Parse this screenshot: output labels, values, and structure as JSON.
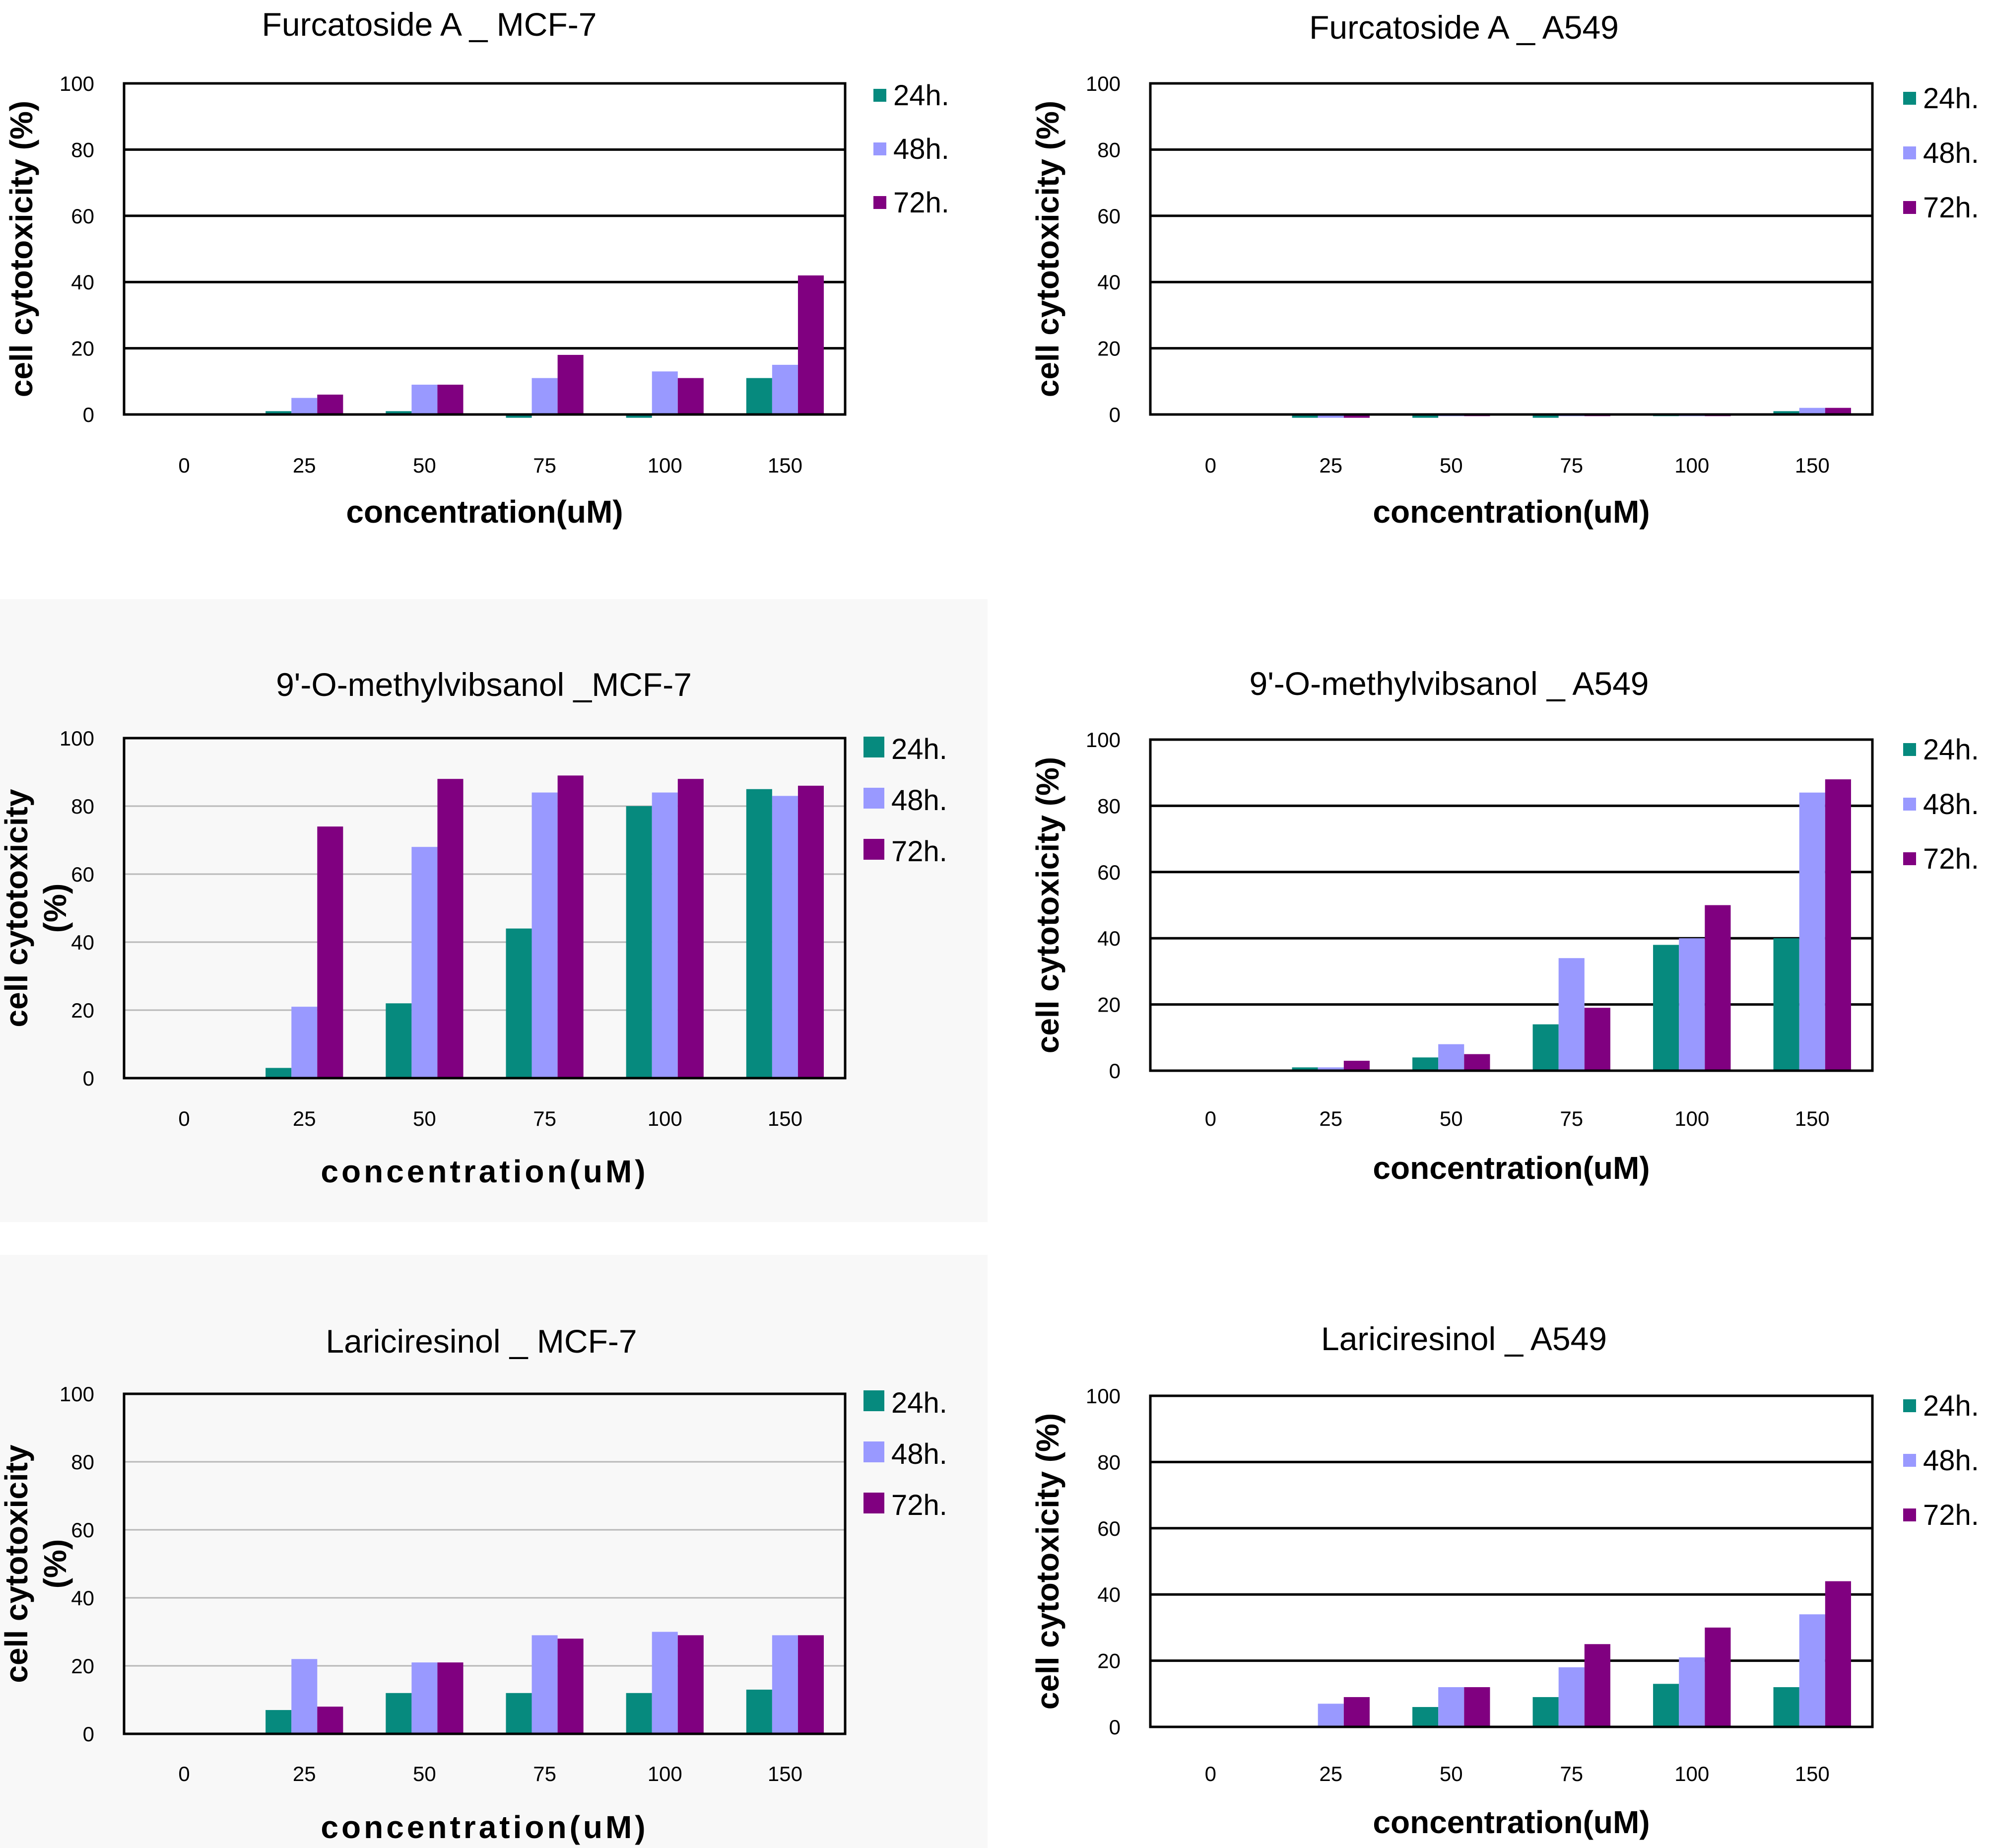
{
  "colors": {
    "24h": "#068a7e",
    "48h": "#9999ff",
    "72h": "#800080"
  },
  "chart_data": [
    {
      "type": "bar",
      "title": "Furcatoside A _ MCF-7",
      "xlabel": "concentration(uM)",
      "ylabel": "cell cytotoxicity (%)",
      "categories": [
        "0",
        "25",
        "50",
        "75",
        "100",
        "150"
      ],
      "ylim": [
        0,
        100
      ],
      "yticks": [
        0,
        20,
        40,
        60,
        80,
        100
      ],
      "series": [
        {
          "name": "24h.",
          "values": [
            0,
            1,
            1,
            -1,
            -1,
            11
          ]
        },
        {
          "name": "48h.",
          "values": [
            0,
            5,
            9,
            11,
            13,
            15
          ]
        },
        {
          "name": "72h.",
          "values": [
            0,
            6,
            9,
            18,
            11,
            42
          ]
        }
      ]
    },
    {
      "type": "bar",
      "title": "Furcatoside A _ A549",
      "xlabel": "concentration(uM)",
      "ylabel": "cell cytotoxicity (%)",
      "categories": [
        "0",
        "25",
        "50",
        "75",
        "100",
        "150"
      ],
      "ylim": [
        0,
        100
      ],
      "yticks": [
        0,
        20,
        40,
        60,
        80,
        100
      ],
      "series": [
        {
          "name": "24h.",
          "values": [
            0,
            -1,
            -1,
            -1,
            -0.5,
            1
          ]
        },
        {
          "name": "48h.",
          "values": [
            0,
            -1,
            -0.5,
            -0.5,
            -0.5,
            2
          ]
        },
        {
          "name": "72h.",
          "values": [
            0,
            -1,
            -0.5,
            -0.5,
            -0.5,
            2
          ]
        }
      ]
    },
    {
      "type": "bar",
      "title": "9'-O-methylvibsanol _MCF-7",
      "xlabel": "concentration(uM)",
      "ylabel": "cell cytotoxicity (%)",
      "categories": [
        "0",
        "25",
        "50",
        "75",
        "100",
        "150"
      ],
      "ylim": [
        0,
        100
      ],
      "yticks": [
        0,
        20,
        40,
        60,
        80,
        100
      ],
      "series": [
        {
          "name": "24h.",
          "values": [
            0,
            3,
            22,
            44,
            80,
            85
          ]
        },
        {
          "name": "48h.",
          "values": [
            0,
            21,
            68,
            84,
            84,
            83
          ]
        },
        {
          "name": "72h.",
          "values": [
            0,
            74,
            88,
            89,
            88,
            86
          ]
        }
      ]
    },
    {
      "type": "bar",
      "title": "9'-O-methylvibsanol _ A549",
      "xlabel": "concentration(uM)",
      "ylabel": "cell cytotoxicity (%)",
      "categories": [
        "0",
        "25",
        "50",
        "75",
        "100",
        "150"
      ],
      "ylim": [
        0,
        100
      ],
      "yticks": [
        0,
        20,
        40,
        60,
        80,
        100
      ],
      "series": [
        {
          "name": "24h.",
          "values": [
            0,
            1,
            4,
            14,
            38,
            40
          ]
        },
        {
          "name": "48h.",
          "values": [
            0,
            1,
            8,
            34,
            40,
            84
          ]
        },
        {
          "name": "72h.",
          "values": [
            0,
            3,
            5,
            19,
            50,
            88
          ]
        }
      ]
    },
    {
      "type": "bar",
      "title": "Lariciresinol _ MCF-7",
      "xlabel": "concentration(uM)",
      "ylabel": "cell cytotoxicity (%)",
      "categories": [
        "0",
        "25",
        "50",
        "75",
        "100",
        "150"
      ],
      "ylim": [
        0,
        100
      ],
      "yticks": [
        0,
        20,
        40,
        60,
        80,
        100
      ],
      "series": [
        {
          "name": "24h.",
          "values": [
            0,
            7,
            12,
            12,
            12,
            13
          ]
        },
        {
          "name": "48h.",
          "values": [
            0,
            22,
            21,
            29,
            30,
            29
          ]
        },
        {
          "name": "72h.",
          "values": [
            0,
            8,
            21,
            28,
            29,
            29
          ]
        }
      ]
    },
    {
      "type": "bar",
      "title": "Lariciresinol _ A549",
      "xlabel": "concentration(uM)",
      "ylabel": "cell cytotoxicity (%)",
      "categories": [
        "0",
        "25",
        "50",
        "75",
        "100",
        "150"
      ],
      "ylim": [
        0,
        100
      ],
      "yticks": [
        0,
        20,
        40,
        60,
        80,
        100
      ],
      "series": [
        {
          "name": "24h.",
          "values": [
            0,
            0,
            6,
            9,
            13,
            12
          ]
        },
        {
          "name": "48h.",
          "values": [
            0,
            7,
            12,
            18,
            21,
            34
          ]
        },
        {
          "name": "72h.",
          "values": [
            0,
            9,
            12,
            25,
            30,
            44
          ]
        }
      ]
    }
  ]
}
